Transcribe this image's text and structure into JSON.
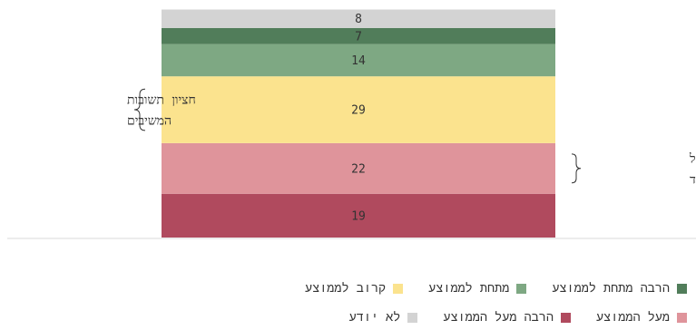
{
  "chart_data": {
    "type": "bar",
    "stacked": true,
    "orientation": "vertical",
    "ylim": [
      0,
      100
    ],
    "series": [
      {
        "name": "הרבה מעל הממוצע",
        "value": 19,
        "color": "#b04a5e"
      },
      {
        "name": "מעל הממוצע",
        "value": 22,
        "color": "#df949b"
      },
      {
        "name": "קרוב לממוצע",
        "value": 29,
        "color": "#fbe38e"
      },
      {
        "name": "מתחת לממוצע",
        "value": 14,
        "color": "#7ea883"
      },
      {
        "name": "הרבה מתחת לממוצע",
        "value": 7,
        "color": "#517d5a"
      },
      {
        "name": "לא יודע",
        "value": 8,
        "color": "#d3d3d3"
      }
    ],
    "annotations": [
      {
        "lines": [
          "חציון תשובות",
          "המשיבים"
        ],
        "side": "left",
        "series_index": 2
      },
      {
        "lines": [
          "דירוג ישראל",
          "על פי המדד"
        ],
        "side": "right",
        "series_index": 1
      }
    ]
  },
  "legend_rows": [
    [
      {
        "label": "הרבה מתחת לממוצע",
        "color": "#517d5a"
      },
      {
        "label": "מתחת לממוצע",
        "color": "#7ea883"
      },
      {
        "label": "קרוב לממוצע",
        "color": "#fbe38e"
      }
    ],
    [
      {
        "label": "מעל הממוצע",
        "color": "#df949b"
      },
      {
        "label": "הרבה מעל הממוצע",
        "color": "#b04a5e"
      },
      {
        "label": "לא יודע",
        "color": "#d3d3d3"
      }
    ]
  ]
}
